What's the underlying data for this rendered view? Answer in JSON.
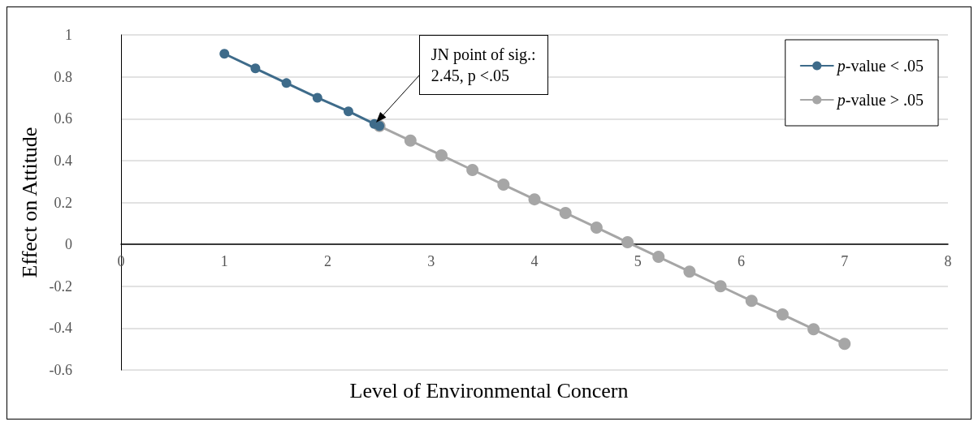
{
  "chart_data": {
    "type": "line",
    "xlabel": "Level of Environmental Concern",
    "ylabel": "Effect on Attitude",
    "xlim": [
      0,
      8
    ],
    "xticks": [
      0,
      1,
      2,
      3,
      4,
      5,
      6,
      7,
      8
    ],
    "ylim": [
      -0.6,
      1
    ],
    "yticks": [
      -0.6,
      -0.4,
      -0.2,
      0,
      0.2,
      0.4,
      0.6,
      0.8,
      1
    ],
    "grid": "y",
    "legend": "top right",
    "marker": "circle",
    "line_style": "solid",
    "series": [
      {
        "name": "p-value < .05",
        "color": "#3e6b8a",
        "x": [
          1,
          1.3,
          1.6,
          1.9,
          2.2,
          2.45,
          2.5
        ],
        "values": [
          0.91,
          0.84,
          0.77,
          0.7,
          0.635,
          0.575,
          0.565
        ]
      },
      {
        "name": "p-value > .05",
        "color": "#a6a6a6",
        "x": [
          2.5,
          2.8,
          3.1,
          3.4,
          3.7,
          4.0,
          4.3,
          4.6,
          4.9,
          5.2,
          5.5,
          5.8,
          6.1,
          6.4,
          6.7,
          7.0
        ],
        "values": [
          0.565,
          0.495,
          0.425,
          0.355,
          0.285,
          0.215,
          0.15,
          0.08,
          0.01,
          -0.06,
          -0.13,
          -0.2,
          -0.27,
          -0.335,
          -0.405,
          -0.475
        ]
      }
    ],
    "annotations": [
      {
        "text": "JN point of sig.:\n2.45, p <.05",
        "x": 2.45,
        "y": 0.575
      }
    ]
  }
}
